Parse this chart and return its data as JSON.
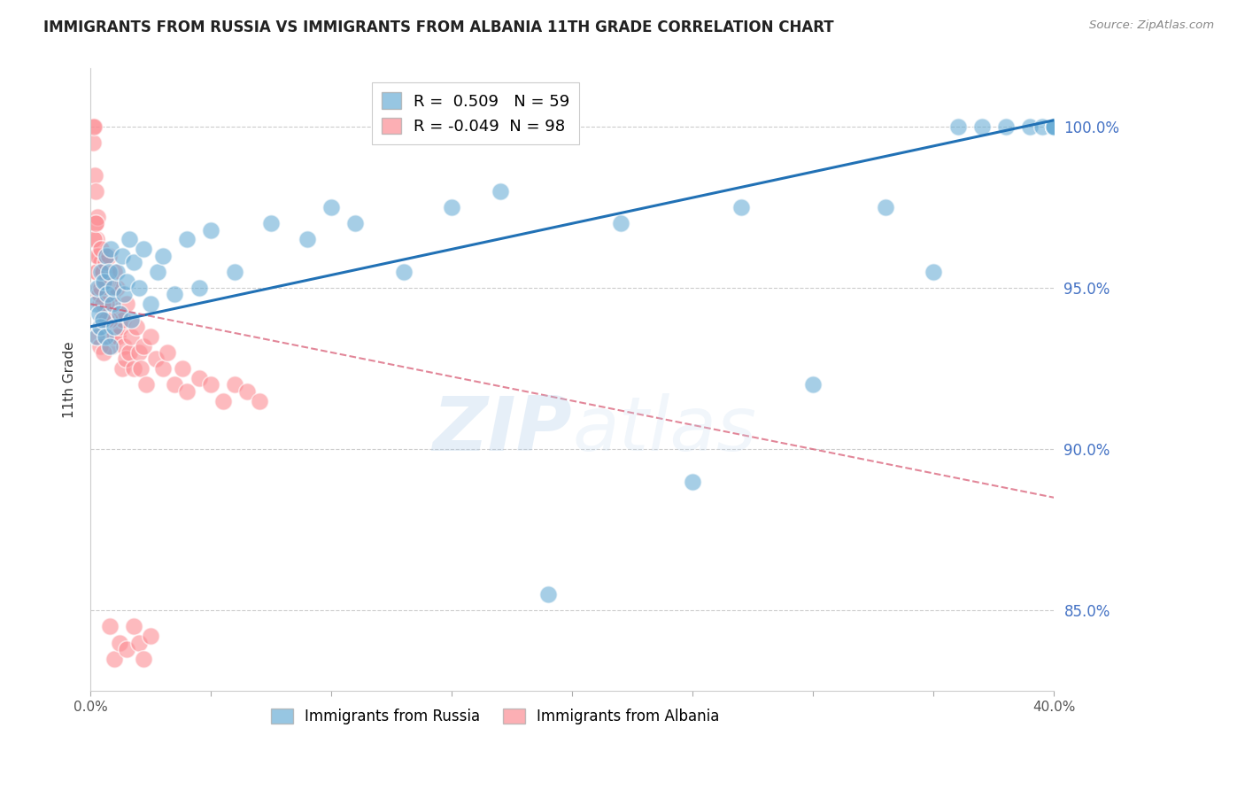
{
  "title": "IMMIGRANTS FROM RUSSIA VS IMMIGRANTS FROM ALBANIA 11TH GRADE CORRELATION CHART",
  "source": "Source: ZipAtlas.com",
  "ylabel": "11th Grade",
  "ytick_values": [
    85.0,
    90.0,
    95.0,
    100.0
  ],
  "xmin": 0.0,
  "xmax": 40.0,
  "ymin": 82.5,
  "ymax": 101.8,
  "legend_russia": "Immigrants from Russia",
  "legend_albania": "Immigrants from Albania",
  "R_russia": 0.509,
  "N_russia": 59,
  "R_albania": -0.049,
  "N_albania": 98,
  "russia_color": "#6baed6",
  "albania_color": "#fc8d94",
  "russia_trend_color": "#2171b5",
  "albania_trend_color": "#d6546e",
  "russia_x": [
    0.2,
    0.25,
    0.3,
    0.35,
    0.4,
    0.45,
    0.5,
    0.55,
    0.6,
    0.65,
    0.7,
    0.75,
    0.8,
    0.85,
    0.9,
    0.95,
    1.0,
    1.1,
    1.2,
    1.3,
    1.4,
    1.5,
    1.6,
    1.7,
    1.8,
    2.0,
    2.2,
    2.5,
    2.8,
    3.0,
    3.5,
    4.0,
    4.5,
    5.0,
    6.0,
    7.5,
    9.0,
    10.0,
    11.0,
    13.0,
    15.0,
    17.0,
    19.0,
    22.0,
    25.0,
    27.0,
    30.0,
    33.0,
    35.0,
    36.0,
    37.0,
    38.0,
    39.0,
    39.5,
    40.0,
    40.0,
    40.0,
    40.0,
    40.0
  ],
  "russia_y": [
    94.5,
    93.5,
    95.0,
    94.2,
    93.8,
    95.5,
    94.0,
    95.2,
    93.5,
    96.0,
    94.8,
    95.5,
    93.2,
    96.2,
    94.5,
    95.0,
    93.8,
    95.5,
    94.2,
    96.0,
    94.8,
    95.2,
    96.5,
    94.0,
    95.8,
    95.0,
    96.2,
    94.5,
    95.5,
    96.0,
    94.8,
    96.5,
    95.0,
    96.8,
    95.5,
    97.0,
    96.5,
    97.5,
    97.0,
    95.5,
    97.5,
    98.0,
    85.5,
    97.0,
    89.0,
    97.5,
    92.0,
    97.5,
    95.5,
    100.0,
    100.0,
    100.0,
    100.0,
    100.0,
    100.0,
    100.0,
    100.0,
    100.0,
    100.0
  ],
  "albania_x": [
    0.1,
    0.12,
    0.15,
    0.18,
    0.2,
    0.22,
    0.25,
    0.28,
    0.3,
    0.32,
    0.35,
    0.38,
    0.4,
    0.42,
    0.45,
    0.48,
    0.5,
    0.52,
    0.55,
    0.58,
    0.6,
    0.62,
    0.65,
    0.68,
    0.7,
    0.72,
    0.75,
    0.78,
    0.8,
    0.82,
    0.85,
    0.88,
    0.9,
    0.92,
    0.95,
    0.98,
    1.0,
    1.05,
    1.1,
    1.15,
    1.2,
    1.25,
    1.3,
    1.35,
    1.4,
    1.45,
    1.5,
    1.6,
    1.7,
    1.8,
    1.9,
    2.0,
    2.1,
    2.2,
    2.3,
    2.5,
    2.7,
    3.0,
    3.2,
    3.5,
    3.8,
    4.0,
    4.5,
    5.0,
    5.5,
    6.0,
    6.5,
    7.0,
    0.15,
    0.2,
    0.25,
    0.3,
    0.35,
    0.4,
    0.45,
    0.5,
    0.55,
    0.6,
    0.65,
    0.7,
    0.75,
    0.8,
    0.3,
    0.35,
    0.4,
    0.45,
    0.5,
    0.55,
    0.6,
    0.65,
    0.8,
    1.0,
    1.2,
    1.5,
    1.8,
    2.0,
    2.2,
    2.5
  ],
  "albania_y": [
    100.0,
    99.5,
    100.0,
    98.5,
    97.0,
    98.0,
    96.5,
    95.5,
    97.2,
    94.8,
    96.0,
    95.5,
    94.5,
    95.8,
    95.0,
    94.0,
    95.5,
    93.8,
    95.0,
    94.5,
    93.8,
    95.2,
    94.0,
    95.5,
    94.8,
    93.5,
    95.0,
    94.2,
    93.8,
    95.2,
    94.5,
    93.2,
    95.0,
    94.8,
    93.5,
    94.0,
    95.5,
    93.8,
    95.0,
    93.5,
    94.2,
    93.8,
    92.5,
    94.0,
    93.2,
    92.8,
    94.5,
    93.0,
    93.5,
    92.5,
    93.8,
    93.0,
    92.5,
    93.2,
    92.0,
    93.5,
    92.8,
    92.5,
    93.0,
    92.0,
    92.5,
    91.8,
    92.2,
    92.0,
    91.5,
    92.0,
    91.8,
    91.5,
    96.5,
    97.0,
    95.5,
    96.0,
    95.0,
    94.8,
    96.2,
    95.5,
    94.2,
    95.8,
    94.5,
    95.2,
    96.0,
    94.0,
    93.5,
    94.8,
    93.2,
    95.0,
    94.5,
    93.0,
    95.2,
    94.0,
    84.5,
    83.5,
    84.0,
    83.8,
    84.5,
    84.0,
    83.5,
    84.2
  ],
  "trend_russia_x0": 0.0,
  "trend_russia_y0": 93.8,
  "trend_russia_x1": 40.0,
  "trend_russia_y1": 100.2,
  "trend_albania_x0": 0.0,
  "trend_albania_y0": 94.5,
  "trend_albania_x1": 40.0,
  "trend_albania_y1": 88.5
}
